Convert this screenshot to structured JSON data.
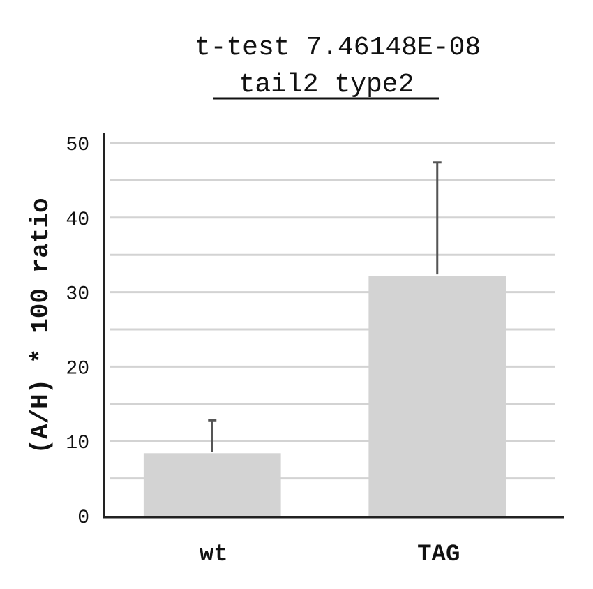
{
  "chart_data": {
    "type": "bar",
    "title_line1": "t-test 7.46148E-08",
    "title_line2": "tail2 type2",
    "ylabel": "(A/H) * 100 ratio",
    "xlabel": "",
    "categories": [
      "wt",
      "TAG"
    ],
    "values": [
      8.4,
      32.2
    ],
    "error_upper": [
      4.4,
      15.2
    ],
    "ylim": [
      0,
      50
    ],
    "yticks": [
      0,
      10,
      20,
      30,
      40,
      50
    ],
    "minor_gridlines": [
      5,
      15,
      25,
      35,
      45
    ],
    "grid": true,
    "colors": {
      "bar": "#d3d3d3",
      "grid": "#d3d3d3",
      "axis": "#222222",
      "error_bar": "#555555",
      "text": "#111111"
    }
  }
}
